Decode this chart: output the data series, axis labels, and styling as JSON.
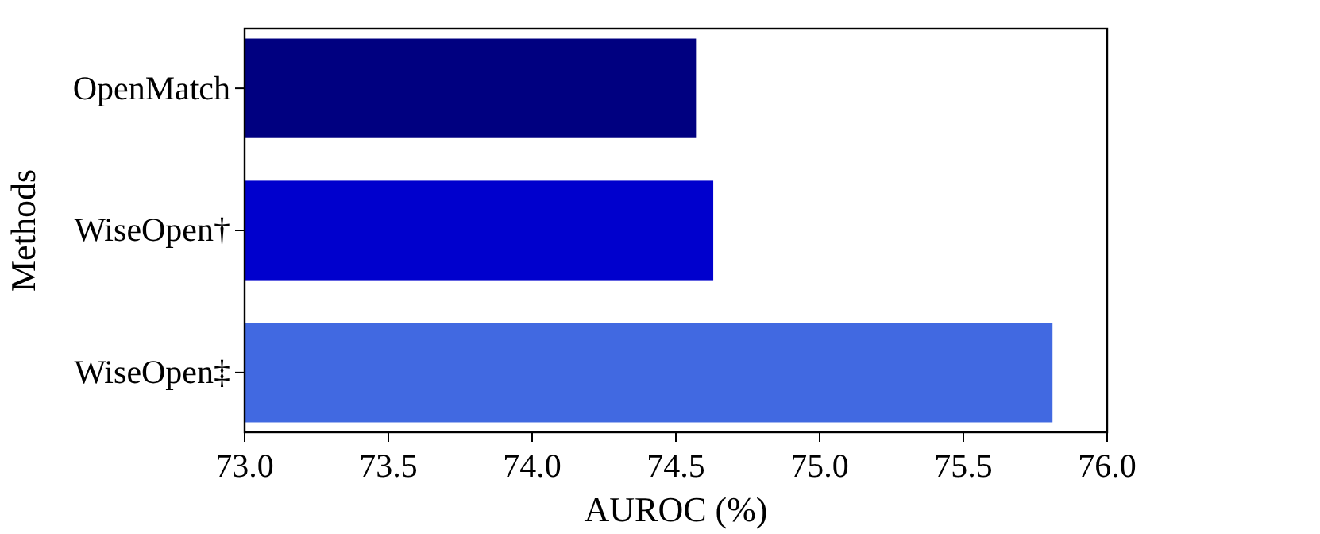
{
  "chart_data": {
    "type": "bar",
    "orientation": "horizontal",
    "xlabel": "AUROC (%)",
    "ylabel": "Methods",
    "categories": [
      "OpenMatch",
      "WiseOpen†",
      "WiseOpen‡"
    ],
    "values": [
      74.57,
      74.63,
      75.81
    ],
    "colors": [
      "#000080",
      "#0000cd",
      "#4169e1"
    ],
    "xlim": [
      73.0,
      76.0
    ],
    "xticks": [
      {
        "value": 73.0,
        "label": "73.0"
      },
      {
        "value": 73.5,
        "label": "73.5"
      },
      {
        "value": 74.0,
        "label": "74.0"
      },
      {
        "value": 74.5,
        "label": "74.5"
      },
      {
        "value": 75.0,
        "label": "75.0"
      },
      {
        "value": 75.5,
        "label": "75.5"
      },
      {
        "value": 76.0,
        "label": "76.0"
      }
    ],
    "grid": false
  }
}
